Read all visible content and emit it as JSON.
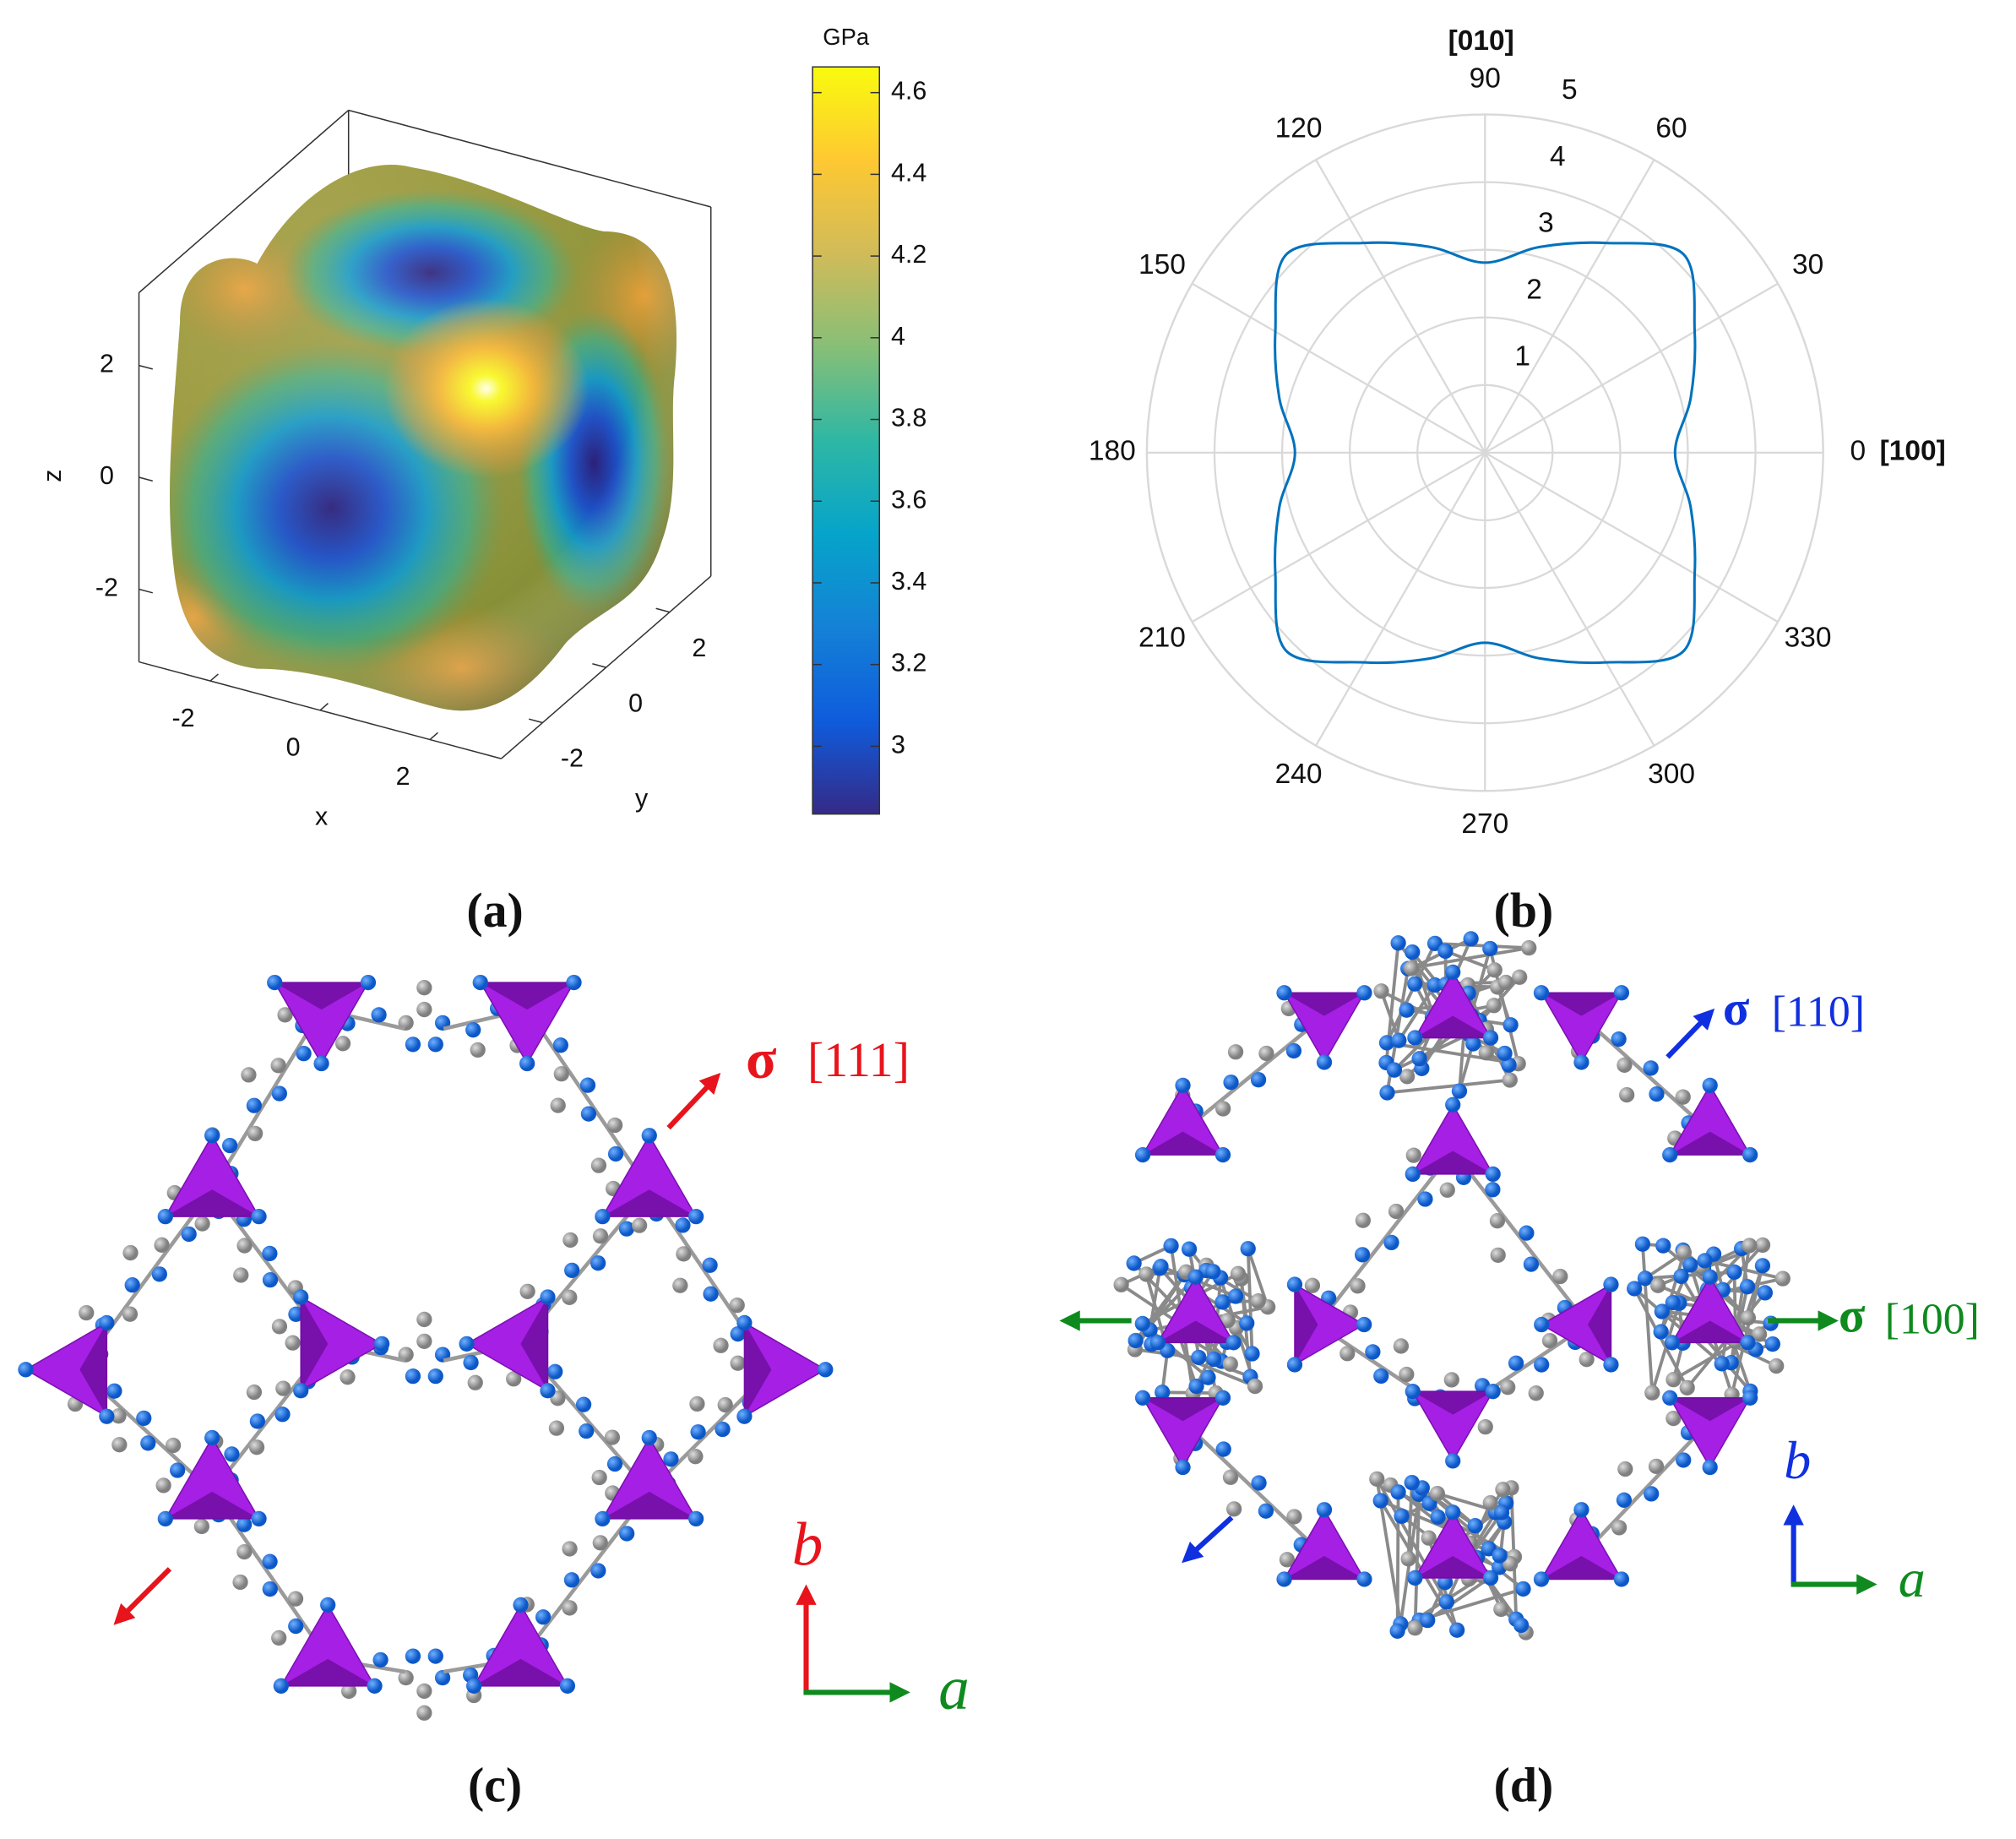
{
  "chart_data": [
    {
      "type": "surface3d",
      "xlabel": "x",
      "ylabel": "y",
      "zlabel": "z",
      "xlim": [
        -3.3,
        3.3
      ],
      "ylim": [
        -3.3,
        3.3
      ],
      "zlim": [
        -3.3,
        3.3
      ],
      "xticks": [
        -2,
        0,
        2
      ],
      "yticks": [
        -2,
        0,
        2
      ],
      "zticks": [
        -2,
        0,
        2
      ],
      "colorbar_label": "GPa",
      "clim": [
        2.834,
        4.663
      ],
      "colorbar_ticks": [
        3,
        3.2,
        3.4,
        3.6,
        3.8,
        4,
        4.2,
        4.4,
        4.6
      ],
      "colormap": [
        "#352a87",
        "#0f5cdd",
        "#1481d6",
        "#06a4ca",
        "#2eb7a4",
        "#87bf77",
        "#d1bb59",
        "#fec832",
        "#f9fb0e"
      ],
      "caption": "(a)"
    },
    {
      "type": "polar",
      "color": "#0072bd",
      "grid": true,
      "theta": [
        0,
        15,
        30,
        45,
        60,
        75,
        90,
        105,
        120,
        135,
        150,
        165,
        180,
        195,
        210,
        225,
        240,
        255,
        270,
        285,
        300,
        315,
        330,
        345,
        360
      ],
      "r": [
        2.81,
        3.15,
        3.58,
        4.15,
        3.58,
        3.15,
        2.81,
        3.15,
        3.58,
        4.15,
        3.58,
        3.15,
        2.81,
        3.15,
        3.58,
        4.15,
        3.58,
        3.15,
        2.81,
        3.15,
        3.58,
        4.15,
        3.58,
        3.15,
        2.81
      ],
      "rlim": [
        0,
        5
      ],
      "rticks": [
        1,
        2,
        3,
        4,
        5
      ],
      "thetaticks": [
        0,
        30,
        60,
        90,
        120,
        150,
        180,
        210,
        240,
        270,
        300,
        330
      ],
      "x_direction_label": "[100]",
      "y_direction_label": "[010]",
      "caption": "(b)"
    }
  ],
  "panel_c": {
    "stress_symbol": "σ",
    "stress_direction": "[111]",
    "axis_b": "b",
    "axis_a": "a",
    "caption": "(c)"
  },
  "panel_d": {
    "stress_1": {
      "symbol": "σ",
      "direction": "[110]"
    },
    "stress_2": {
      "symbol": "σ",
      "direction": "[100]"
    },
    "axis_b": "b",
    "axis_a": "a",
    "caption": "(d)"
  }
}
